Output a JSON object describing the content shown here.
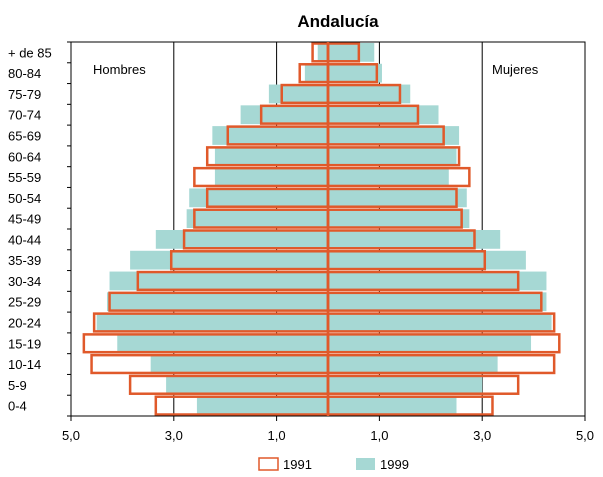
{
  "chart_data": {
    "type": "bar",
    "subtype": "population-pyramid",
    "title": "Andalucía",
    "left_label": "Hombres",
    "right_label": "Mujeres",
    "categories": [
      "0-4",
      "5-9",
      "10-14",
      "15-19",
      "20-24",
      "25-29",
      "30-34",
      "35-39",
      "40-44",
      "45-49",
      "50-54",
      "55-59",
      "60-64",
      "65-69",
      "70-74",
      "75-79",
      "80-84",
      "+ de 85"
    ],
    "x_tick_labels": [
      "5,0",
      "3,0",
      "1,0",
      "1,0",
      "3,0",
      "5,0"
    ],
    "xlim": [
      -5,
      5
    ],
    "grid_values": [
      -3,
      -1,
      1,
      3
    ],
    "colors": {
      "s1991": "#e0592a",
      "s1999": "#a6d8d4",
      "axis": "#000000"
    },
    "series": [
      {
        "name": "1991",
        "style": "outline",
        "hombres": [
          3.35,
          3.85,
          4.6,
          4.75,
          4.55,
          4.25,
          3.7,
          3.05,
          2.8,
          2.6,
          2.35,
          2.6,
          2.35,
          1.95,
          1.3,
          0.9,
          0.55,
          0.3
        ],
        "mujeres": [
          3.2,
          3.7,
          4.4,
          4.5,
          4.4,
          4.15,
          3.7,
          3.05,
          2.85,
          2.6,
          2.5,
          2.75,
          2.55,
          2.25,
          1.75,
          1.4,
          0.95,
          0.6
        ]
      },
      {
        "name": "1999",
        "style": "filled",
        "hombres": [
          2.55,
          3.15,
          3.45,
          4.1,
          4.5,
          4.3,
          4.25,
          3.85,
          3.35,
          2.75,
          2.7,
          2.2,
          2.2,
          2.25,
          1.7,
          1.15,
          0.45,
          0.2
        ],
        "mujeres": [
          2.5,
          3.0,
          3.3,
          3.95,
          4.35,
          4.25,
          4.25,
          3.85,
          3.35,
          2.75,
          2.7,
          2.35,
          2.5,
          2.55,
          2.15,
          1.6,
          1.05,
          0.9
        ]
      }
    ],
    "legend": {
      "position": "bottom",
      "entries": [
        "1991",
        "1999"
      ]
    }
  }
}
